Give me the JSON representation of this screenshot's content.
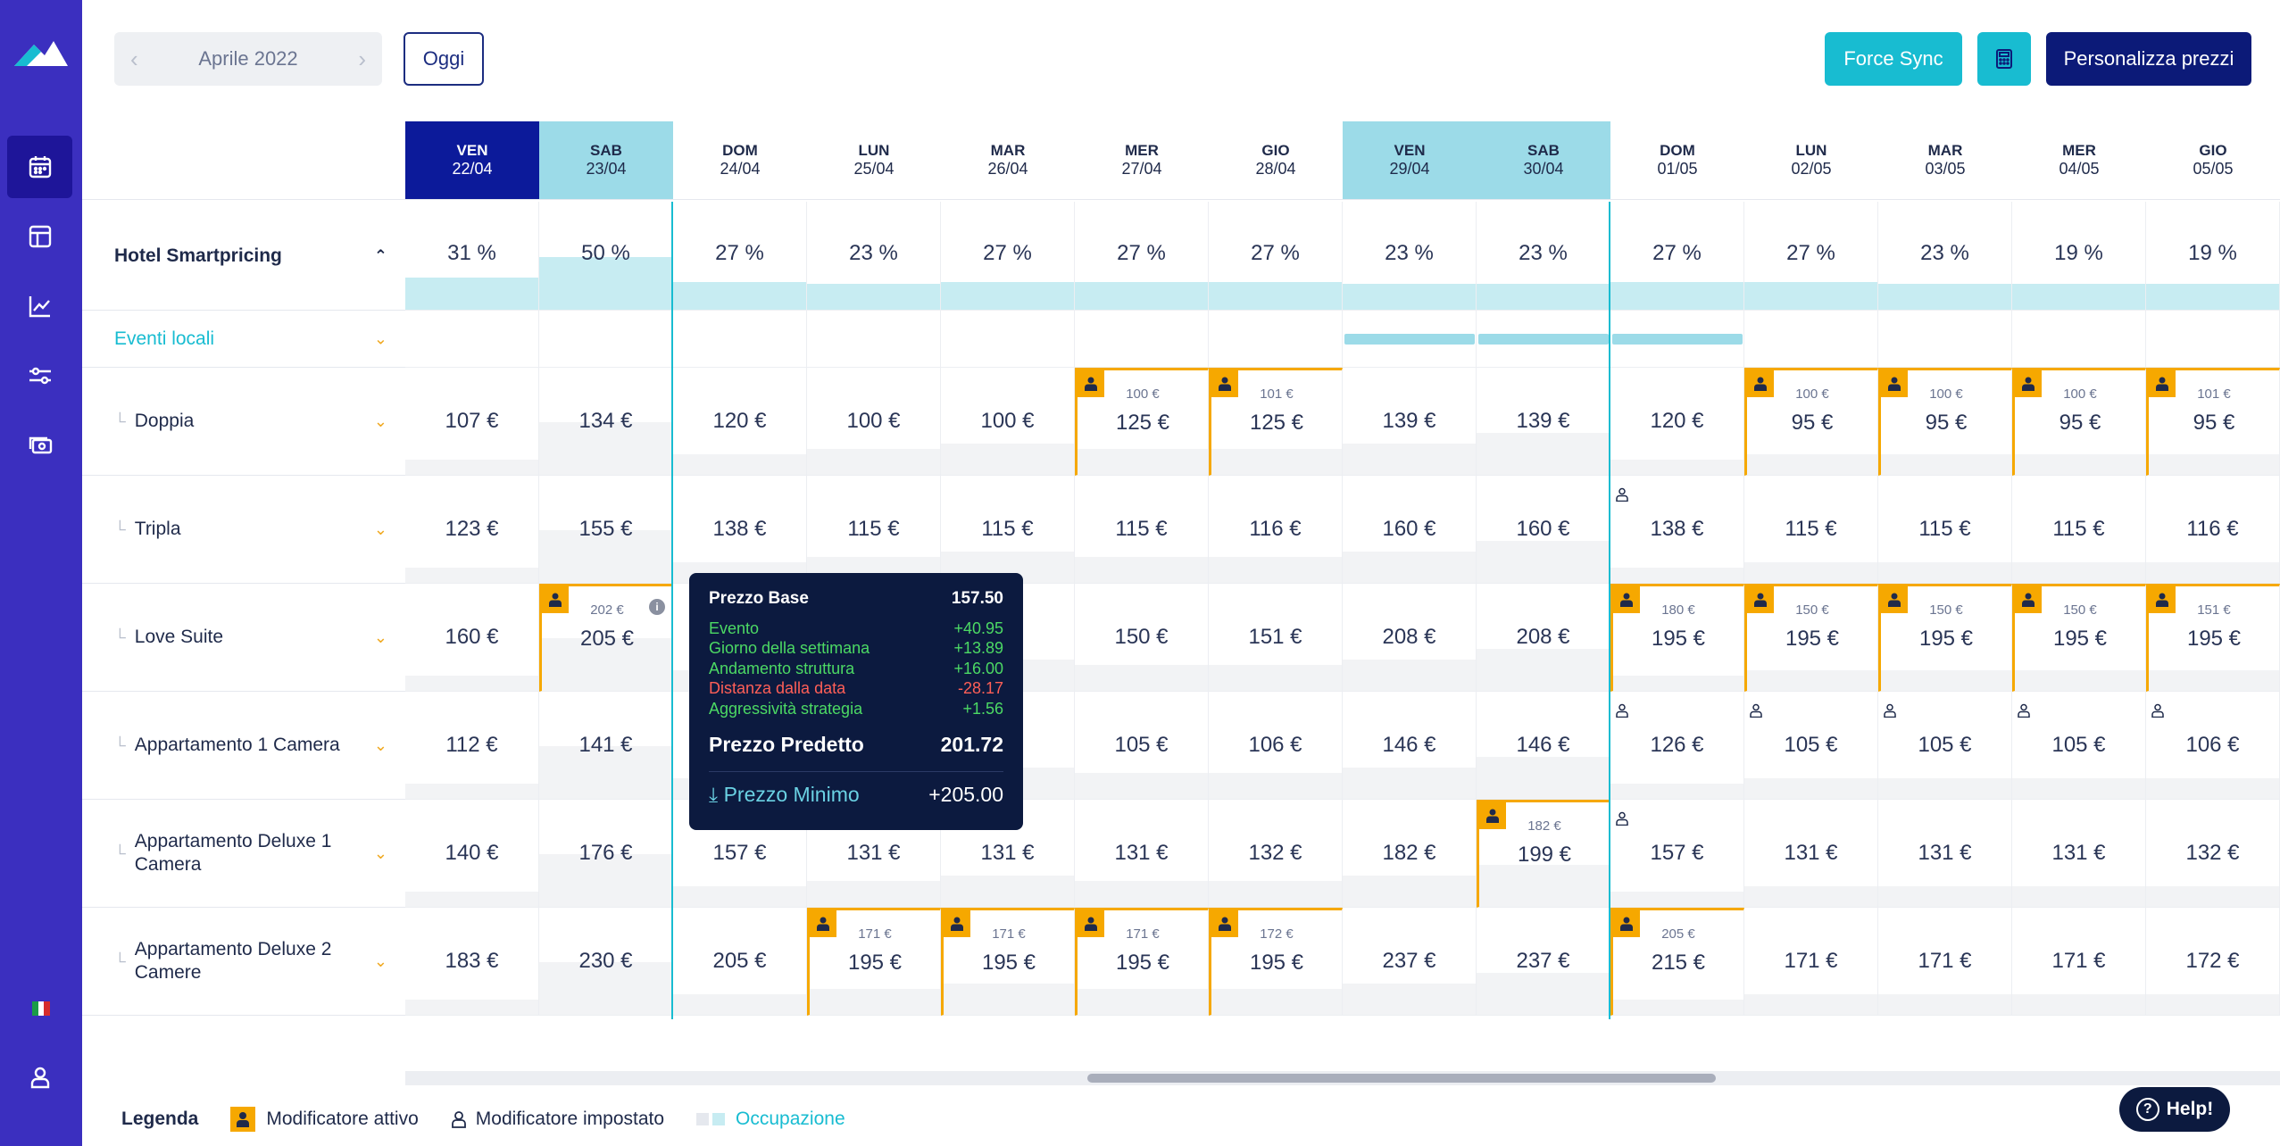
{
  "nav": {
    "month": "Aprile 2022",
    "today_label": "Oggi",
    "force_sync": "Force Sync",
    "customize_prices": "Personalizza prezzi"
  },
  "days": [
    {
      "dn": "VEN",
      "date": "22/04",
      "kind": "today"
    },
    {
      "dn": "SAB",
      "date": "23/04",
      "kind": "weekend"
    },
    {
      "dn": "DOM",
      "date": "24/04",
      "kind": ""
    },
    {
      "dn": "LUN",
      "date": "25/04",
      "kind": ""
    },
    {
      "dn": "MAR",
      "date": "26/04",
      "kind": ""
    },
    {
      "dn": "MER",
      "date": "27/04",
      "kind": ""
    },
    {
      "dn": "GIO",
      "date": "28/04",
      "kind": ""
    },
    {
      "dn": "VEN",
      "date": "29/04",
      "kind": "weekend"
    },
    {
      "dn": "SAB",
      "date": "30/04",
      "kind": "weekend"
    },
    {
      "dn": "DOM",
      "date": "01/05",
      "kind": ""
    },
    {
      "dn": "LUN",
      "date": "02/05",
      "kind": ""
    },
    {
      "dn": "MAR",
      "date": "03/05",
      "kind": ""
    },
    {
      "dn": "MER",
      "date": "04/05",
      "kind": ""
    },
    {
      "dn": "GIO",
      "date": "05/05",
      "kind": ""
    }
  ],
  "hotel": {
    "name": "Hotel Smartpricing",
    "occupancy": [
      "31 %",
      "50 %",
      "27 %",
      "23 %",
      "27 %",
      "27 %",
      "27 %",
      "23 %",
      "23 %",
      "27 %",
      "27 %",
      "23 %",
      "19 %",
      "19 %"
    ],
    "occupancy_level": [
      0.31,
      0.5,
      0.27,
      0.23,
      0.27,
      0.27,
      0.27,
      0.23,
      0.23,
      0.27,
      0.27,
      0.23,
      0.19,
      0.19
    ]
  },
  "events": {
    "label": "Eventi locali",
    "active_days": [
      7,
      8,
      9
    ]
  },
  "rooms": [
    {
      "name": "Doppia",
      "prices": [
        "107 €",
        "134 €",
        "120 €",
        "100 €",
        "100 €",
        "125 €",
        "125 €",
        "139 €",
        "139 €",
        "120 €",
        "95 €",
        "95 €",
        "95 €",
        "95 €"
      ],
      "base": [
        "",
        "",
        "",
        "",
        "",
        "100 €",
        "101 €",
        "",
        "",
        "",
        "100 €",
        "100 €",
        "100 €",
        "101 €"
      ],
      "mod": [
        0,
        0,
        0,
        0,
        0,
        1,
        1,
        0,
        0,
        0,
        1,
        1,
        1,
        1
      ],
      "set": [
        0,
        0,
        0,
        0,
        0,
        0,
        0,
        0,
        0,
        0,
        0,
        0,
        0,
        0
      ]
    },
    {
      "name": "Tripla",
      "prices": [
        "123 €",
        "155 €",
        "138 €",
        "115 €",
        "115 €",
        "115 €",
        "116 €",
        "160 €",
        "160 €",
        "138 €",
        "115 €",
        "115 €",
        "115 €",
        "116 €"
      ],
      "base": [
        "",
        "",
        "",
        "",
        "",
        "",
        "",
        "",
        "",
        "",
        "",
        "",
        "",
        ""
      ],
      "mod": [
        0,
        0,
        0,
        0,
        0,
        0,
        0,
        0,
        0,
        0,
        0,
        0,
        0,
        0
      ],
      "set": [
        0,
        0,
        0,
        0,
        0,
        0,
        0,
        0,
        0,
        1,
        0,
        0,
        0,
        0
      ]
    },
    {
      "name": "Love Suite",
      "prices": [
        "160 €",
        "205 €",
        "",
        "",
        "",
        "150 €",
        "151 €",
        "208 €",
        "208 €",
        "195 €",
        "195 €",
        "195 €",
        "195 €",
        "195 €"
      ],
      "base": [
        "",
        "202 €",
        "",
        "",
        "",
        "",
        "",
        "",
        "",
        "180 €",
        "150 €",
        "150 €",
        "150 €",
        "151 €"
      ],
      "mod": [
        0,
        1,
        0,
        0,
        0,
        0,
        0,
        0,
        0,
        1,
        1,
        1,
        1,
        1
      ],
      "set": [
        0,
        0,
        0,
        0,
        0,
        0,
        0,
        0,
        0,
        0,
        0,
        0,
        0,
        0
      ]
    },
    {
      "name": "Appartamento 1 Camera",
      "prices": [
        "112 €",
        "141 €",
        "",
        "",
        "",
        "105 €",
        "106 €",
        "146 €",
        "146 €",
        "126 €",
        "105 €",
        "105 €",
        "105 €",
        "106 €"
      ],
      "base": [
        "",
        "",
        "",
        "",
        "",
        "",
        "",
        "",
        "",
        "",
        "",
        "",
        "",
        ""
      ],
      "mod": [
        0,
        0,
        0,
        0,
        0,
        0,
        0,
        0,
        0,
        0,
        0,
        0,
        0,
        0
      ],
      "set": [
        0,
        0,
        0,
        0,
        0,
        0,
        0,
        0,
        0,
        1,
        1,
        1,
        1,
        1
      ]
    },
    {
      "name": "Appartamento Deluxe 1 Camera",
      "prices": [
        "140 €",
        "176 €",
        "157 €",
        "131 €",
        "131 €",
        "131 €",
        "132 €",
        "182 €",
        "199 €",
        "157 €",
        "131 €",
        "131 €",
        "131 €",
        "132 €"
      ],
      "base": [
        "",
        "",
        "",
        "",
        "",
        "",
        "",
        "",
        "182 €",
        "",
        "",
        "",
        "",
        ""
      ],
      "mod": [
        0,
        0,
        0,
        0,
        0,
        0,
        0,
        0,
        1,
        0,
        0,
        0,
        0,
        0
      ],
      "set": [
        0,
        0,
        0,
        0,
        0,
        0,
        0,
        0,
        0,
        1,
        0,
        0,
        0,
        0
      ]
    },
    {
      "name": "Appartamento Deluxe 2 Camere",
      "prices": [
        "183 €",
        "230 €",
        "205 €",
        "195 €",
        "195 €",
        "195 €",
        "195 €",
        "237 €",
        "237 €",
        "215 €",
        "171 €",
        "171 €",
        "171 €",
        "172 €"
      ],
      "base": [
        "",
        "",
        "",
        "171 €",
        "171 €",
        "171 €",
        "172 €",
        "",
        "",
        "205 €",
        "",
        "",
        "",
        ""
      ],
      "mod": [
        0,
        0,
        0,
        1,
        1,
        1,
        1,
        0,
        0,
        1,
        0,
        0,
        0,
        0
      ],
      "set": [
        0,
        0,
        0,
        0,
        0,
        0,
        0,
        0,
        0,
        0,
        0,
        0,
        0,
        0
      ]
    }
  ],
  "tooltip": {
    "base_label": "Prezzo Base",
    "base_value": "157.50",
    "items": [
      {
        "label": "Evento",
        "value": "+40.95",
        "sign": "pos"
      },
      {
        "label": "Giorno della settimana",
        "value": "+13.89",
        "sign": "pos"
      },
      {
        "label": "Andamento struttura",
        "value": "+16.00",
        "sign": "pos"
      },
      {
        "label": "Distanza dalla data",
        "value": "-28.17",
        "sign": "neg"
      },
      {
        "label": "Aggressività strategia",
        "value": "+1.56",
        "sign": "pos"
      }
    ],
    "pred_label": "Prezzo Predetto",
    "pred_value": "201.72",
    "min_label": "Prezzo Minimo",
    "min_value": "+205.00"
  },
  "legend": {
    "title": "Legenda",
    "active": "Modificatore attivo",
    "set": "Modificatore impostato",
    "occupancy": "Occupazione"
  },
  "help": "Help!",
  "colors": {
    "sidebar": "#3b2fbf",
    "accent": "#18bcd1",
    "navy": "#0c1a78",
    "modifier": "#f6a800"
  }
}
